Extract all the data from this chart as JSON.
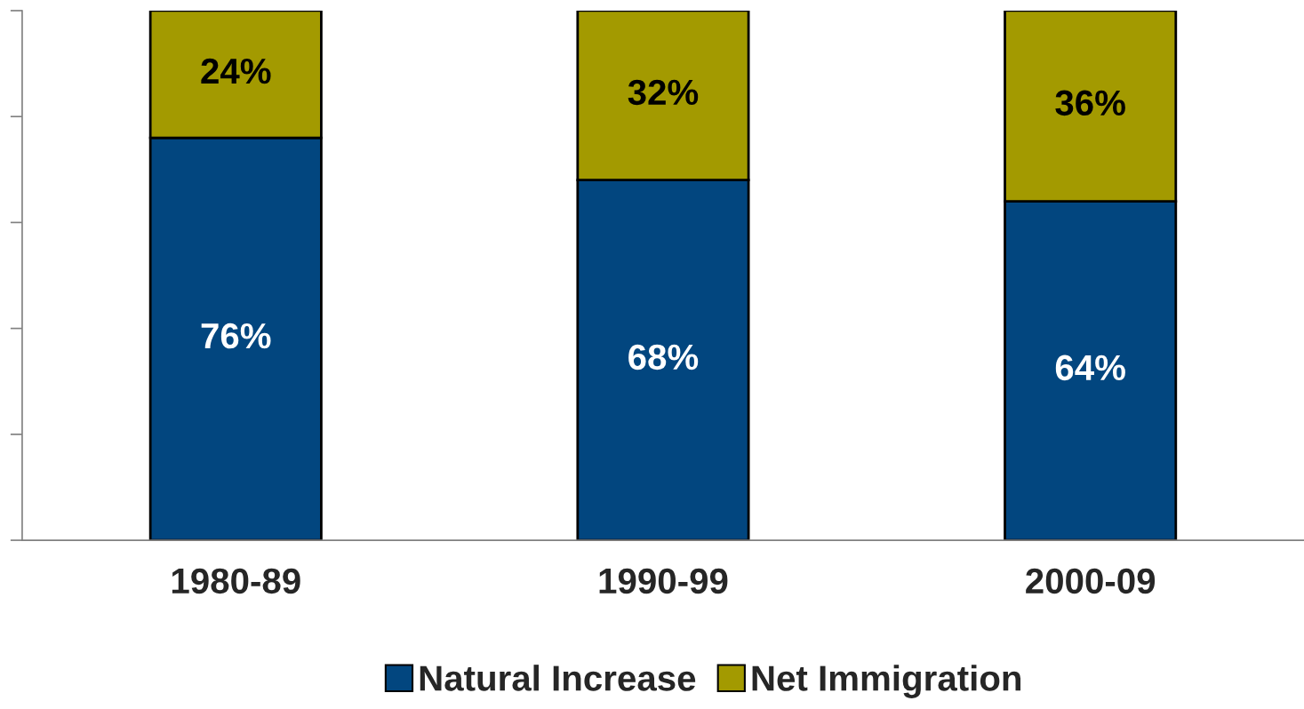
{
  "chart_data": {
    "type": "bar",
    "stacked": true,
    "categories": [
      "1980-89",
      "1990-99",
      "2000-09"
    ],
    "series": [
      {
        "name": "Natural Increase",
        "color": "#02467f",
        "values": [
          76,
          68,
          64
        ],
        "value_labels": [
          "76%",
          "68%",
          "64%"
        ]
      },
      {
        "name": "Net Immigration",
        "color": "#a39a00",
        "values": [
          24,
          32,
          36
        ],
        "value_labels": [
          "24%",
          "32%",
          "36%"
        ]
      }
    ],
    "ylim": [
      0,
      100
    ],
    "yticks": [
      {
        "value": 0,
        "label": null
      },
      {
        "value": 20,
        "label": null
      },
      {
        "value": 40,
        "label": null
      },
      {
        "value": 60,
        "label": null
      },
      {
        "value": 80,
        "label": null
      },
      {
        "value": 100,
        "label": null
      }
    ],
    "tick_labels": "x",
    "grid": false,
    "legend": "bottom"
  }
}
